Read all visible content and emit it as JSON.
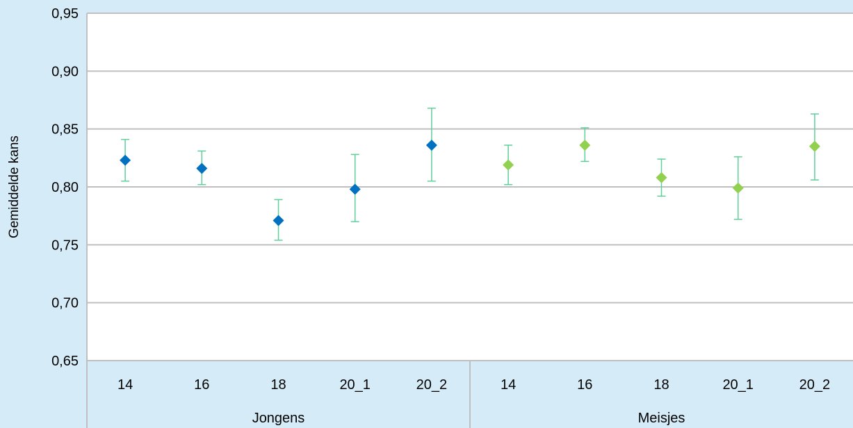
{
  "chart_data": {
    "type": "scatter",
    "title": "",
    "xlabel": "",
    "ylabel": "Gemiddelde kans",
    "ylim": [
      0.65,
      0.95
    ],
    "yticks": [
      "0,65",
      "0,70",
      "0,75",
      "0,80",
      "0,85",
      "0,90",
      "0,95"
    ],
    "yticks_values": [
      0.65,
      0.7,
      0.75,
      0.8,
      0.85,
      0.9,
      0.95
    ],
    "grid": true,
    "groups": [
      {
        "name": "Jongens",
        "color": "#0070c0",
        "categories": [
          "14",
          "16",
          "18",
          "20_1",
          "20_2"
        ],
        "values": [
          0.823,
          0.816,
          0.771,
          0.798,
          0.836
        ],
        "error_low": [
          0.805,
          0.802,
          0.754,
          0.77,
          0.805
        ],
        "error_high": [
          0.841,
          0.831,
          0.789,
          0.828,
          0.868
        ]
      },
      {
        "name": "Meisjes",
        "color": "#92d050",
        "categories": [
          "14",
          "16",
          "18",
          "20_1",
          "20_2"
        ],
        "values": [
          0.819,
          0.836,
          0.808,
          0.799,
          0.835
        ],
        "error_low": [
          0.802,
          0.822,
          0.792,
          0.772,
          0.806
        ],
        "error_high": [
          0.836,
          0.851,
          0.824,
          0.826,
          0.863
        ]
      }
    ],
    "error_bar_color": "#5fcf9a",
    "gridline_color": "#bfbfbf"
  }
}
